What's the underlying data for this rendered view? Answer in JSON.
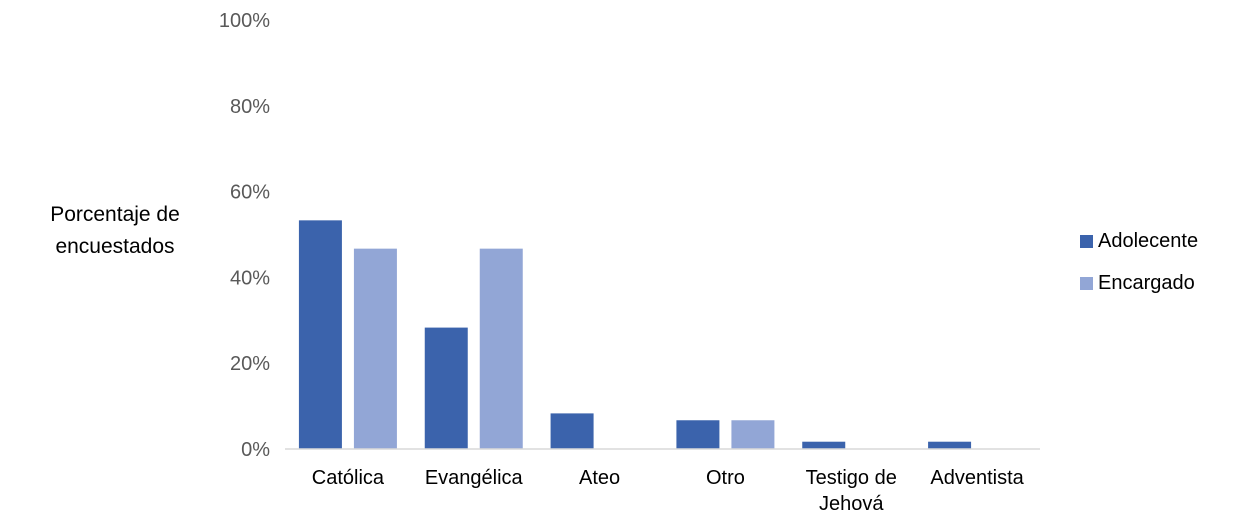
{
  "chart_data": {
    "type": "bar",
    "ylabel": [
      "Porcentaje de",
      "encuestados"
    ],
    "ylim": [
      0,
      100
    ],
    "yticks": [
      "0%",
      "20%",
      "40%",
      "60%",
      "80%",
      "100%"
    ],
    "yticks_values": [
      0,
      20,
      40,
      60,
      80,
      100
    ],
    "categories": [
      [
        "Católica"
      ],
      [
        "Evangélica"
      ],
      [
        "Ateo"
      ],
      [
        "Otro"
      ],
      [
        "Testigo de",
        "Jehová"
      ],
      [
        "Adventista"
      ]
    ],
    "series": [
      {
        "name": "Adolecente",
        "color": "#3b63ac",
        "values": [
          53.3,
          28.3,
          8.3,
          6.7,
          1.7,
          1.7
        ]
      },
      {
        "name": "Encargado",
        "color": "#92a6d6",
        "values": [
          46.7,
          46.7,
          0,
          6.7,
          0,
          0
        ]
      }
    ],
    "legend_position": "right",
    "grid": false
  }
}
